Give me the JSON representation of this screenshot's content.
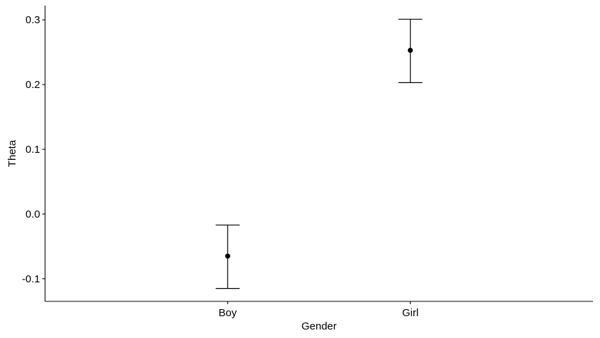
{
  "chart_data": {
    "type": "scatter",
    "title": "",
    "xlabel": "Gender",
    "ylabel": "Theta",
    "categories": [
      "Boy",
      "Girl"
    ],
    "series": [
      {
        "values": [
          -0.065,
          0.253
        ],
        "lower": [
          -0.115,
          0.203
        ],
        "upper": [
          -0.017,
          0.301
        ]
      }
    ],
    "ylim": [
      -0.135,
      0.322
    ],
    "yticks": [
      -0.1,
      0.0,
      0.1,
      0.2,
      0.3
    ],
    "ytick_labels": [
      "-0.1",
      "0.0",
      "0.1",
      "0.2",
      "0.3"
    ],
    "grid": false,
    "legend": "none",
    "colors": {
      "point": "#000000",
      "errorbar": "#000000",
      "axis": "#000000"
    }
  }
}
